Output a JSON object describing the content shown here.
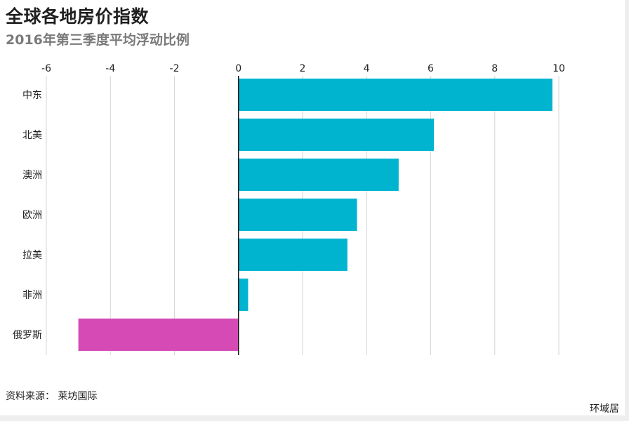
{
  "title": "全球各地房价指数",
  "subtitle": "2016年第三季度平均浮动比例",
  "source": "资料来源：  莱坊国际",
  "brand": "环域居",
  "chart_data": {
    "type": "bar",
    "orientation": "horizontal",
    "title": "全球各地房价指数",
    "subtitle": "2016年第三季度平均浮动比例",
    "xlim": [
      -6,
      10
    ],
    "xticks": [
      -6,
      -4,
      -2,
      0,
      2,
      4,
      6,
      8,
      10
    ],
    "categories": [
      "中东",
      "北美",
      "澳洲",
      "欧洲",
      "拉美",
      "非洲",
      "俄罗斯"
    ],
    "values": [
      9.8,
      6.1,
      5.0,
      3.7,
      3.4,
      0.3,
      -5.0
    ],
    "grid": true,
    "colors": {
      "positive": "#00b4d0",
      "negative": "#d54ab5",
      "grid": "#d6d6d6",
      "axis": "#000000"
    }
  }
}
